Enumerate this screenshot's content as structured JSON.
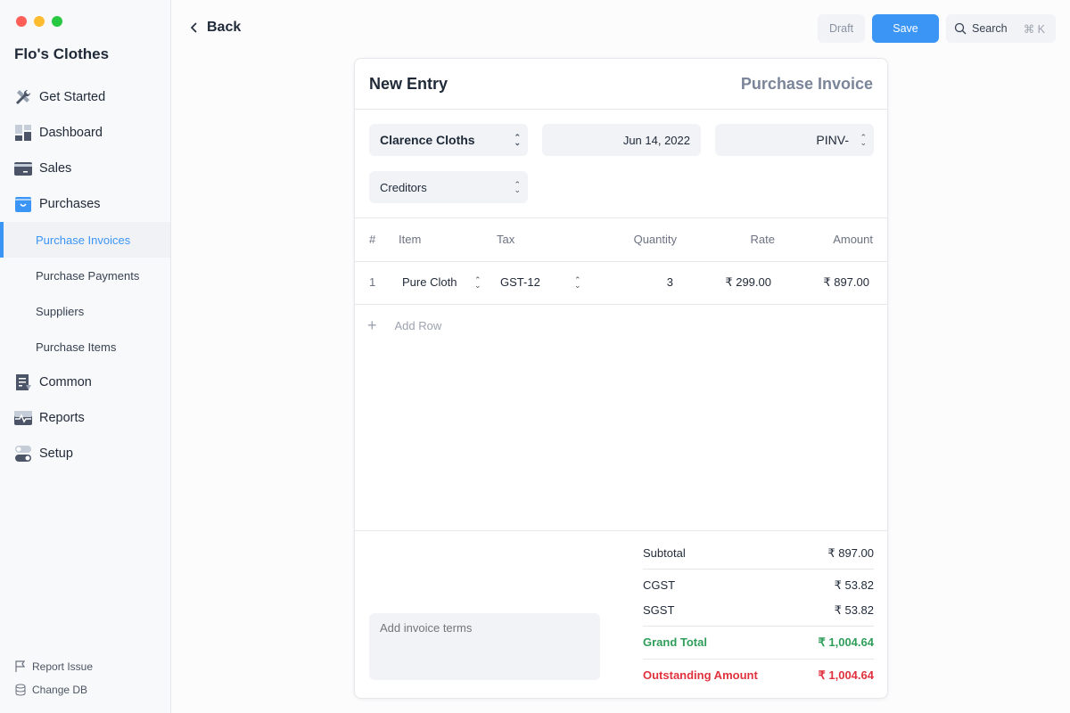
{
  "window": {
    "controls": [
      "#ff5f57",
      "#febc2e",
      "#28c840"
    ]
  },
  "sidebar": {
    "brand": "Flo's Clothes",
    "items": [
      {
        "label": "Get Started",
        "icon": "tools-icon"
      },
      {
        "label": "Dashboard",
        "icon": "dashboard-icon"
      },
      {
        "label": "Sales",
        "icon": "card-icon"
      },
      {
        "label": "Purchases",
        "icon": "basket-icon"
      }
    ],
    "sub_items": [
      {
        "label": "Purchase Invoices",
        "active": true
      },
      {
        "label": "Purchase Payments"
      },
      {
        "label": "Suppliers"
      },
      {
        "label": "Purchase Items"
      }
    ],
    "items2": [
      {
        "label": "Common",
        "icon": "document-icon"
      },
      {
        "label": "Reports",
        "icon": "chart-icon"
      },
      {
        "label": "Setup",
        "icon": "toggle-icon"
      }
    ],
    "footer": {
      "report_issue": "Report Issue",
      "change_db": "Change DB"
    }
  },
  "topbar": {
    "back": "Back",
    "draft": "Draft",
    "save": "Save",
    "search": "Search",
    "shortcut": "⌘ K"
  },
  "colors": {
    "accent": "#3b95f5",
    "green": "#2f9e5a",
    "red": "#e0323e"
  },
  "form": {
    "title": "New Entry",
    "doc_type": "Purchase Invoice",
    "party": "Clarence Cloths",
    "date": "Jun 14, 2022",
    "series": "PINV-",
    "account": "Creditors"
  },
  "table": {
    "headers": [
      "#",
      "Item",
      "Tax",
      "Quantity",
      "Rate",
      "Amount"
    ],
    "rows": [
      {
        "idx": "1",
        "item": "Pure Cloth",
        "tax": "GST-12",
        "qty": "3",
        "rate": "₹ 299.00",
        "amount": "₹ 897.00"
      }
    ],
    "add_row": "Add Row"
  },
  "terms_placeholder": "Add invoice terms",
  "totals": {
    "subtotal_label": "Subtotal",
    "subtotal": "₹ 897.00",
    "cgst_label": "CGST",
    "cgst": "₹ 53.82",
    "sgst_label": "SGST",
    "sgst": "₹ 53.82",
    "grand_label": "Grand Total",
    "grand": "₹ 1,004.64",
    "outstanding_label": "Outstanding Amount",
    "outstanding": "₹ 1,004.64"
  }
}
